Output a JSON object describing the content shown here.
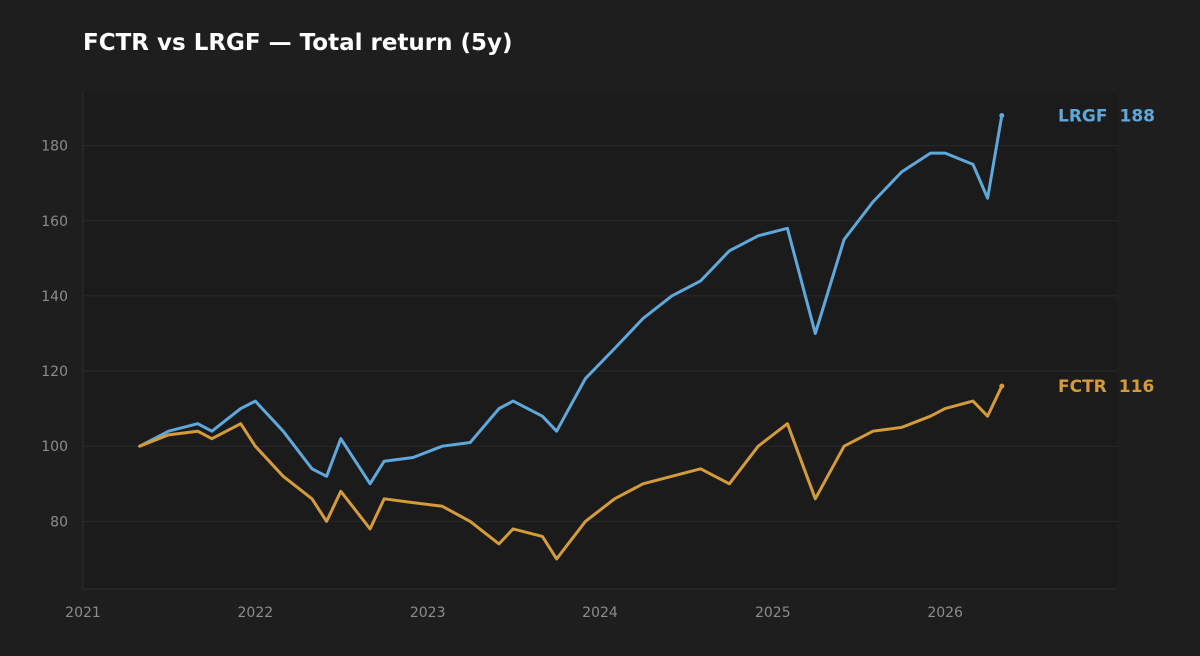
{
  "chart_data": {
    "type": "line",
    "title": "FCTR vs LRGF — Total return (5y)",
    "xlabel": "",
    "ylabel": "",
    "x_ticks": [
      "2021",
      "2022",
      "2023",
      "2024",
      "2025",
      "2026"
    ],
    "y_ticks": [
      80,
      100,
      120,
      140,
      160,
      180
    ],
    "xlim": [
      "2021-01-01",
      "2026-12-31"
    ],
    "ylim": [
      62,
      194
    ],
    "grid": true,
    "legend": "direct labels at line ends",
    "x": [
      "2021-05",
      "2021-07",
      "2021-09",
      "2021-10",
      "2021-12",
      "2022-01",
      "2022-03",
      "2022-05",
      "2022-06",
      "2022-07",
      "2022-09",
      "2022-10",
      "2022-12",
      "2023-02",
      "2023-04",
      "2023-06",
      "2023-07",
      "2023-09",
      "2023-10",
      "2023-12",
      "2024-02",
      "2024-04",
      "2024-06",
      "2024-08",
      "2024-10",
      "2024-12",
      "2025-02",
      "2025-04",
      "2025-06",
      "2025-08",
      "2025-10",
      "2025-12",
      "2026-01",
      "2026-03",
      "2026-04",
      "2026-05"
    ],
    "series": [
      {
        "name": "LRGF",
        "color": "#5fa8dc",
        "last_label": "188",
        "values": [
          100,
          104,
          106,
          104,
          110,
          112,
          104,
          94,
          92,
          102,
          90,
          96,
          97,
          100,
          101,
          110,
          112,
          108,
          104,
          118,
          126,
          134,
          140,
          144,
          152,
          156,
          158,
          130,
          155,
          165,
          173,
          178,
          178,
          175,
          166,
          188
        ]
      },
      {
        "name": "FCTR",
        "color": "#d49b3a",
        "last_label": "116",
        "values": [
          100,
          103,
          104,
          102,
          106,
          100,
          92,
          86,
          80,
          88,
          78,
          86,
          85,
          84,
          80,
          74,
          78,
          76,
          70,
          80,
          86,
          90,
          92,
          94,
          90,
          100,
          106,
          86,
          100,
          104,
          105,
          108,
          110,
          112,
          108,
          116
        ]
      }
    ]
  }
}
